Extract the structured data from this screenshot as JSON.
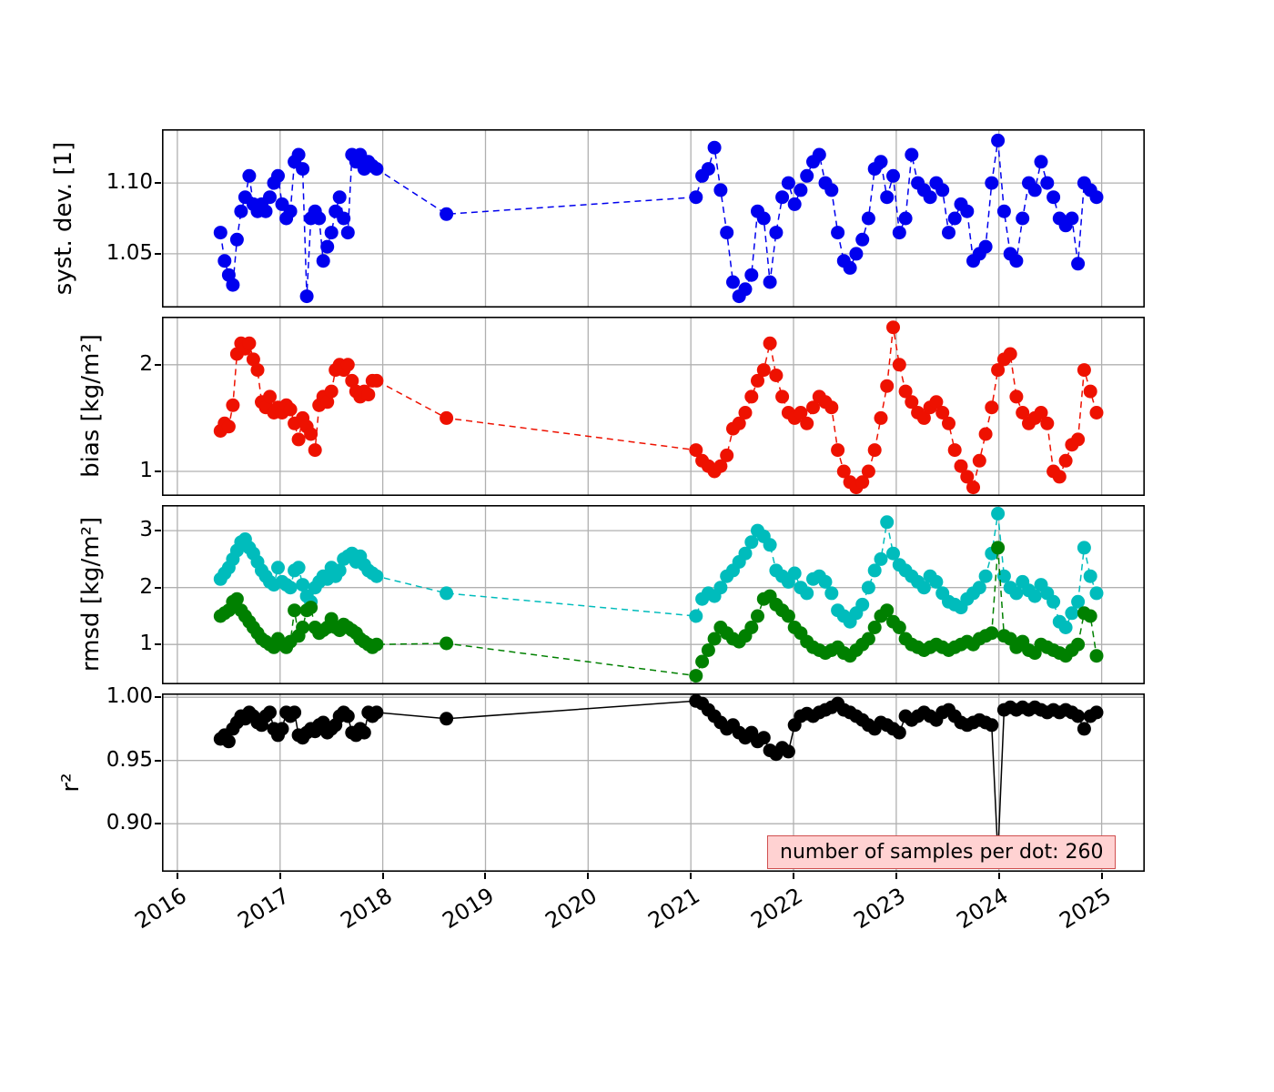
{
  "figure": {
    "background": "#ffffff",
    "grid_color": "#b0b0b0",
    "spine_color": "#000000"
  },
  "chart_data": {
    "type": "scatter",
    "title": "",
    "xlim": [
      2015.85,
      2025.42
    ],
    "xticks": [
      2016,
      2017,
      2018,
      2019,
      2020,
      2021,
      2022,
      2023,
      2024,
      2025
    ],
    "xtick_labels": [
      "2016",
      "2017",
      "2018",
      "2019",
      "2020",
      "2021",
      "2022",
      "2023",
      "2024",
      "2025"
    ],
    "grid": true,
    "x": [
      2016.42,
      2016.46,
      2016.5,
      2016.54,
      2016.58,
      2016.62,
      2016.66,
      2016.7,
      2016.74,
      2016.78,
      2016.82,
      2016.86,
      2016.9,
      2016.94,
      2016.98,
      2017.02,
      2017.06,
      2017.1,
      2017.14,
      2017.18,
      2017.22,
      2017.26,
      2017.3,
      2017.34,
      2017.38,
      2017.42,
      2017.46,
      2017.5,
      2017.54,
      2017.58,
      2017.62,
      2017.66,
      2017.7,
      2017.74,
      2017.78,
      2017.82,
      2017.86,
      2017.9,
      2017.94,
      2018.62,
      2021.05,
      2021.11,
      2021.17,
      2021.23,
      2021.29,
      2021.35,
      2021.41,
      2021.47,
      2021.53,
      2021.59,
      2021.65,
      2021.71,
      2021.77,
      2021.83,
      2021.89,
      2021.95,
      2022.01,
      2022.07,
      2022.13,
      2022.19,
      2022.25,
      2022.31,
      2022.37,
      2022.43,
      2022.49,
      2022.55,
      2022.61,
      2022.67,
      2022.73,
      2022.79,
      2022.85,
      2022.91,
      2022.97,
      2023.03,
      2023.09,
      2023.15,
      2023.21,
      2023.27,
      2023.33,
      2023.39,
      2023.45,
      2023.51,
      2023.57,
      2023.63,
      2023.69,
      2023.75,
      2023.81,
      2023.87,
      2023.93,
      2023.99,
      2024.05,
      2024.11,
      2024.17,
      2024.23,
      2024.29,
      2024.35,
      2024.41,
      2024.47,
      2024.53,
      2024.59,
      2024.65,
      2024.71,
      2024.77,
      2024.83,
      2024.89,
      2024.95
    ],
    "panels": [
      {
        "ylabel": "syst. dev. [1]",
        "ylim": [
          1.012,
          1.138
        ],
        "yticks": [
          1.05,
          1.1
        ],
        "ytick_labels": [
          "1.05",
          "1.10"
        ],
        "series": [
          {
            "name": "blue",
            "color": "#0000ee",
            "linestyle": "dashed",
            "values": [
              1.065,
              1.045,
              1.035,
              1.028,
              1.06,
              1.08,
              1.09,
              1.105,
              1.085,
              1.08,
              1.085,
              1.08,
              1.09,
              1.1,
              1.105,
              1.085,
              1.075,
              1.08,
              1.115,
              1.12,
              1.11,
              1.02,
              1.075,
              1.08,
              1.075,
              1.045,
              1.055,
              1.065,
              1.08,
              1.09,
              1.075,
              1.065,
              1.12,
              1.115,
              1.12,
              1.11,
              1.115,
              1.112,
              1.11,
              1.078,
              1.09,
              1.105,
              1.11,
              1.125,
              1.095,
              1.065,
              1.03,
              1.02,
              1.025,
              1.035,
              1.08,
              1.075,
              1.03,
              1.065,
              1.09,
              1.1,
              1.085,
              1.095,
              1.105,
              1.115,
              1.12,
              1.1,
              1.095,
              1.065,
              1.045,
              1.04,
              1.05,
              1.06,
              1.075,
              1.11,
              1.115,
              1.09,
              1.105,
              1.065,
              1.075,
              1.12,
              1.1,
              1.095,
              1.09,
              1.1,
              1.095,
              1.065,
              1.075,
              1.085,
              1.08,
              1.045,
              1.05,
              1.055,
              1.1,
              1.13,
              1.08,
              1.05,
              1.045,
              1.075,
              1.1,
              1.095,
              1.115,
              1.1,
              1.09,
              1.075,
              1.07,
              1.075,
              1.043,
              1.1,
              1.095,
              1.09
            ]
          }
        ]
      },
      {
        "ylabel": "bias [kg/m²]",
        "ylim": [
          0.77,
          2.45
        ],
        "yticks": [
          1,
          2
        ],
        "ytick_labels": [
          "1",
          "2"
        ],
        "series": [
          {
            "name": "red",
            "color": "#ee1100",
            "linestyle": "dashed",
            "values": [
              1.38,
              1.45,
              1.42,
              1.62,
              2.1,
              2.2,
              2.15,
              2.2,
              2.05,
              1.95,
              1.65,
              1.6,
              1.7,
              1.55,
              1.6,
              1.55,
              1.62,
              1.58,
              1.45,
              1.3,
              1.5,
              1.42,
              1.35,
              1.2,
              1.62,
              1.7,
              1.65,
              1.75,
              1.95,
              2.0,
              1.95,
              2.0,
              1.85,
              1.75,
              1.7,
              1.75,
              1.72,
              1.85,
              1.85,
              1.5,
              1.2,
              1.1,
              1.05,
              1.0,
              1.05,
              1.15,
              1.4,
              1.45,
              1.55,
              1.7,
              1.85,
              1.95,
              2.2,
              1.9,
              1.7,
              1.55,
              1.5,
              1.55,
              1.45,
              1.6,
              1.7,
              1.65,
              1.6,
              1.2,
              1.0,
              0.9,
              0.85,
              0.9,
              1.0,
              1.2,
              1.5,
              1.8,
              2.35,
              2.0,
              1.75,
              1.65,
              1.55,
              1.5,
              1.6,
              1.65,
              1.55,
              1.45,
              1.2,
              1.05,
              0.95,
              0.85,
              1.1,
              1.35,
              1.6,
              1.95,
              2.05,
              2.1,
              1.7,
              1.55,
              1.45,
              1.5,
              1.55,
              1.45,
              1.0,
              0.95,
              1.1,
              1.25,
              1.3,
              1.95,
              1.75,
              1.55
            ]
          }
        ]
      },
      {
        "ylabel": "rmsd [kg/m²]",
        "ylim": [
          0.3,
          3.45
        ],
        "yticks": [
          1,
          2,
          3
        ],
        "ytick_labels": [
          "1",
          "2",
          "3"
        ],
        "series": [
          {
            "name": "cyan",
            "color": "#00bcbc",
            "linestyle": "dashed",
            "values": [
              2.15,
              2.25,
              2.35,
              2.5,
              2.65,
              2.8,
              2.85,
              2.7,
              2.6,
              2.45,
              2.3,
              2.2,
              2.1,
              2.05,
              2.35,
              2.1,
              2.05,
              2.0,
              2.3,
              2.35,
              2.05,
              1.85,
              1.75,
              2.0,
              2.1,
              2.2,
              2.15,
              2.35,
              2.2,
              2.3,
              2.5,
              2.55,
              2.6,
              2.45,
              2.55,
              2.4,
              2.3,
              2.25,
              2.2,
              1.9,
              1.5,
              1.8,
              1.9,
              1.85,
              2.0,
              2.2,
              2.3,
              2.45,
              2.6,
              2.8,
              3.0,
              2.9,
              2.75,
              2.3,
              2.2,
              2.1,
              2.25,
              2.0,
              1.9,
              2.15,
              2.2,
              2.1,
              1.9,
              1.6,
              1.5,
              1.4,
              1.55,
              1.7,
              2.0,
              2.3,
              2.5,
              3.15,
              2.6,
              2.4,
              2.3,
              2.2,
              2.1,
              2.0,
              2.2,
              2.1,
              1.9,
              1.75,
              1.7,
              1.65,
              1.8,
              1.9,
              2.0,
              2.2,
              2.6,
              3.3,
              2.2,
              2.0,
              1.9,
              2.1,
              1.95,
              1.85,
              2.05,
              1.9,
              1.75,
              1.4,
              1.3,
              1.55,
              1.75,
              2.7,
              2.2,
              1.9
            ]
          },
          {
            "name": "green",
            "color": "#008000",
            "linestyle": "dashed",
            "values": [
              1.5,
              1.55,
              1.6,
              1.75,
              1.8,
              1.6,
              1.5,
              1.4,
              1.3,
              1.2,
              1.1,
              1.05,
              1.0,
              0.95,
              1.1,
              1.0,
              0.95,
              1.05,
              1.6,
              1.15,
              1.3,
              1.6,
              1.65,
              1.3,
              1.2,
              1.25,
              1.3,
              1.45,
              1.3,
              1.25,
              1.35,
              1.3,
              1.25,
              1.2,
              1.1,
              1.05,
              1.0,
              0.95,
              1.0,
              1.02,
              0.45,
              0.7,
              0.9,
              1.1,
              1.3,
              1.2,
              1.1,
              1.05,
              1.15,
              1.3,
              1.5,
              1.8,
              1.85,
              1.7,
              1.6,
              1.5,
              1.3,
              1.2,
              1.05,
              0.95,
              0.9,
              0.85,
              0.9,
              0.95,
              0.85,
              0.8,
              0.9,
              1.0,
              1.1,
              1.3,
              1.5,
              1.6,
              1.4,
              1.3,
              1.1,
              1.0,
              0.95,
              0.9,
              0.95,
              1.0,
              0.95,
              0.9,
              0.95,
              1.0,
              1.05,
              1.0,
              1.1,
              1.15,
              1.2,
              2.7,
              1.15,
              1.1,
              0.95,
              1.05,
              0.9,
              0.85,
              1.0,
              0.95,
              0.9,
              0.85,
              0.8,
              0.9,
              1.0,
              1.55,
              1.5,
              0.8
            ]
          }
        ]
      },
      {
        "ylabel": "r²",
        "ylim": [
          0.862,
          1.003
        ],
        "yticks": [
          0.9,
          0.95,
          1.0
        ],
        "ytick_labels": [
          "0.90",
          "0.95",
          "1.00"
        ],
        "series": [
          {
            "name": "black",
            "color": "#000000",
            "linestyle": "solid",
            "values": [
              0.967,
              0.97,
              0.965,
              0.975,
              0.98,
              0.985,
              0.983,
              0.988,
              0.985,
              0.98,
              0.978,
              0.985,
              0.988,
              0.975,
              0.97,
              0.975,
              0.988,
              0.985,
              0.988,
              0.97,
              0.968,
              0.972,
              0.975,
              0.973,
              0.978,
              0.98,
              0.972,
              0.975,
              0.978,
              0.985,
              0.988,
              0.985,
              0.972,
              0.97,
              0.975,
              0.972,
              0.988,
              0.985,
              0.988,
              0.983,
              0.997,
              0.995,
              0.99,
              0.985,
              0.98,
              0.975,
              0.978,
              0.972,
              0.968,
              0.972,
              0.965,
              0.968,
              0.958,
              0.955,
              0.96,
              0.957,
              0.978,
              0.985,
              0.987,
              0.985,
              0.988,
              0.99,
              0.992,
              0.995,
              0.99,
              0.988,
              0.985,
              0.982,
              0.978,
              0.975,
              0.98,
              0.978,
              0.975,
              0.972,
              0.985,
              0.982,
              0.985,
              0.988,
              0.985,
              0.982,
              0.988,
              0.99,
              0.985,
              0.98,
              0.978,
              0.98,
              0.982,
              0.98,
              0.978,
              0.875,
              0.99,
              0.992,
              0.99,
              0.992,
              0.99,
              0.992,
              0.99,
              0.988,
              0.99,
              0.988,
              0.99,
              0.988,
              0.985,
              0.975,
              0.985,
              0.988
            ]
          }
        ]
      }
    ],
    "annotation": {
      "text": "number of samples per dot: 260",
      "facecolor": "#ffd2d2",
      "edgecolor": "#d05050"
    }
  }
}
